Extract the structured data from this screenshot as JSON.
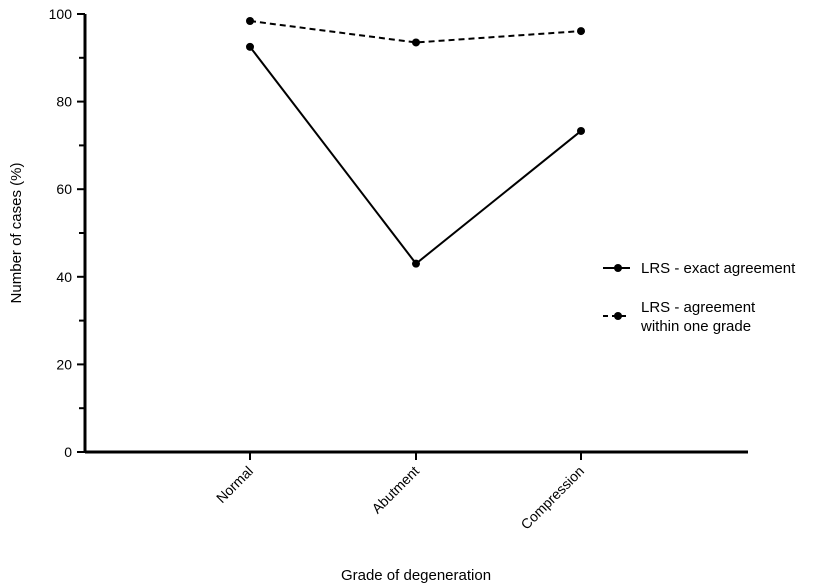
{
  "chart_data": {
    "type": "line",
    "categories": [
      "Normal",
      "Abutment",
      "Compression"
    ],
    "xlabel": "Grade of degeneration",
    "ylabel": "Number of cases (%)",
    "ylim": [
      0,
      100
    ],
    "yticks": [
      0,
      20,
      40,
      60,
      80,
      100
    ],
    "grid": false,
    "legend_position": "right",
    "series": [
      {
        "name": "LRS - exact agreement",
        "line_style": "solid",
        "values": [
          92.5,
          43,
          73.3
        ]
      },
      {
        "name_lines": [
          "LRS - agreement",
          "within one grade"
        ],
        "line_style": "dashed",
        "values": [
          98.4,
          93.5,
          96.1
        ]
      }
    ]
  }
}
